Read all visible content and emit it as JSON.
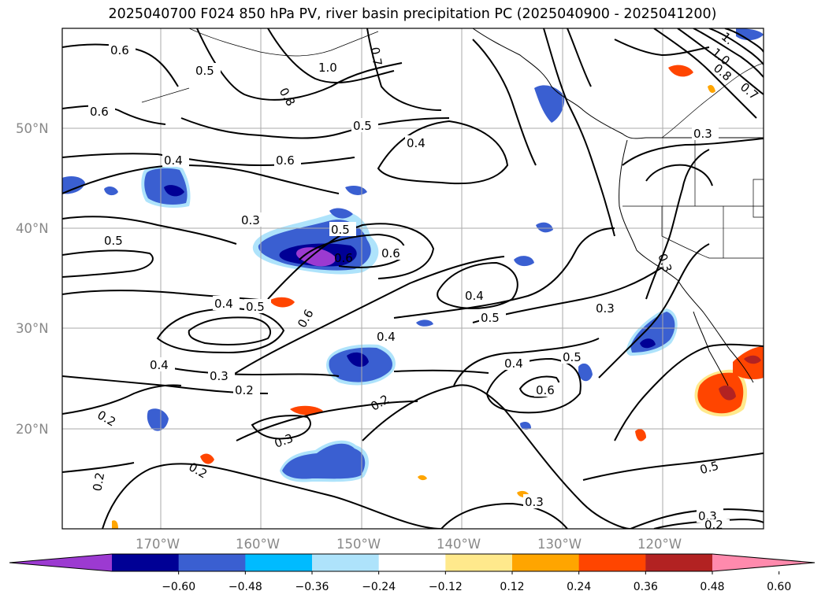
{
  "title": "2025040700 F024 850 hPa PV, river basin precipitation PC (2025040900 - 2025041200)",
  "map": {
    "lon_range": [
      -180,
      -110
    ],
    "lat_range": [
      10,
      60
    ],
    "lat_ticks": [
      "50°N",
      "40°N",
      "30°N",
      "20°N"
    ],
    "lon_ticks": [
      "170°W",
      "160°W",
      "150°W",
      "140°W",
      "130°W",
      "120°W"
    ],
    "gridlines": true,
    "contour_labels": [
      "0.6",
      "0.5",
      "0.8",
      "1.0",
      "0.7",
      "0.6",
      "0.5",
      "0.4",
      "0.6",
      "0.4",
      "0.3",
      "0.5",
      "0.5",
      "0.6",
      "0.6",
      "0.4",
      "0.5",
      "0.6",
      "0.5",
      "0.3",
      "0.4",
      "0.3",
      "0.2",
      "0.4",
      "0.2",
      "0.2",
      "0.3",
      "0.2",
      "0.4",
      "0.5",
      "0.6",
      "0.3",
      "0.3",
      "0.2",
      "0.5",
      "0.3",
      "0.2",
      "0.4",
      "1.0",
      "0.8",
      "0.7",
      "1.",
      "0.3"
    ]
  },
  "colorbar": {
    "ticks": [
      "−0.60",
      "−0.48",
      "−0.36",
      "−0.24",
      "−0.12",
      "0.12",
      "0.24",
      "0.36",
      "0.48",
      "0.60"
    ],
    "colors": [
      "#9c3ad1",
      "#000095",
      "#3a5fd1",
      "#00bbff",
      "#aee3fb",
      "#ffffff",
      "#ffe98c",
      "#ffa500",
      "#ff4500",
      "#b22222",
      "#ff8aad"
    ],
    "extend": "both"
  }
}
